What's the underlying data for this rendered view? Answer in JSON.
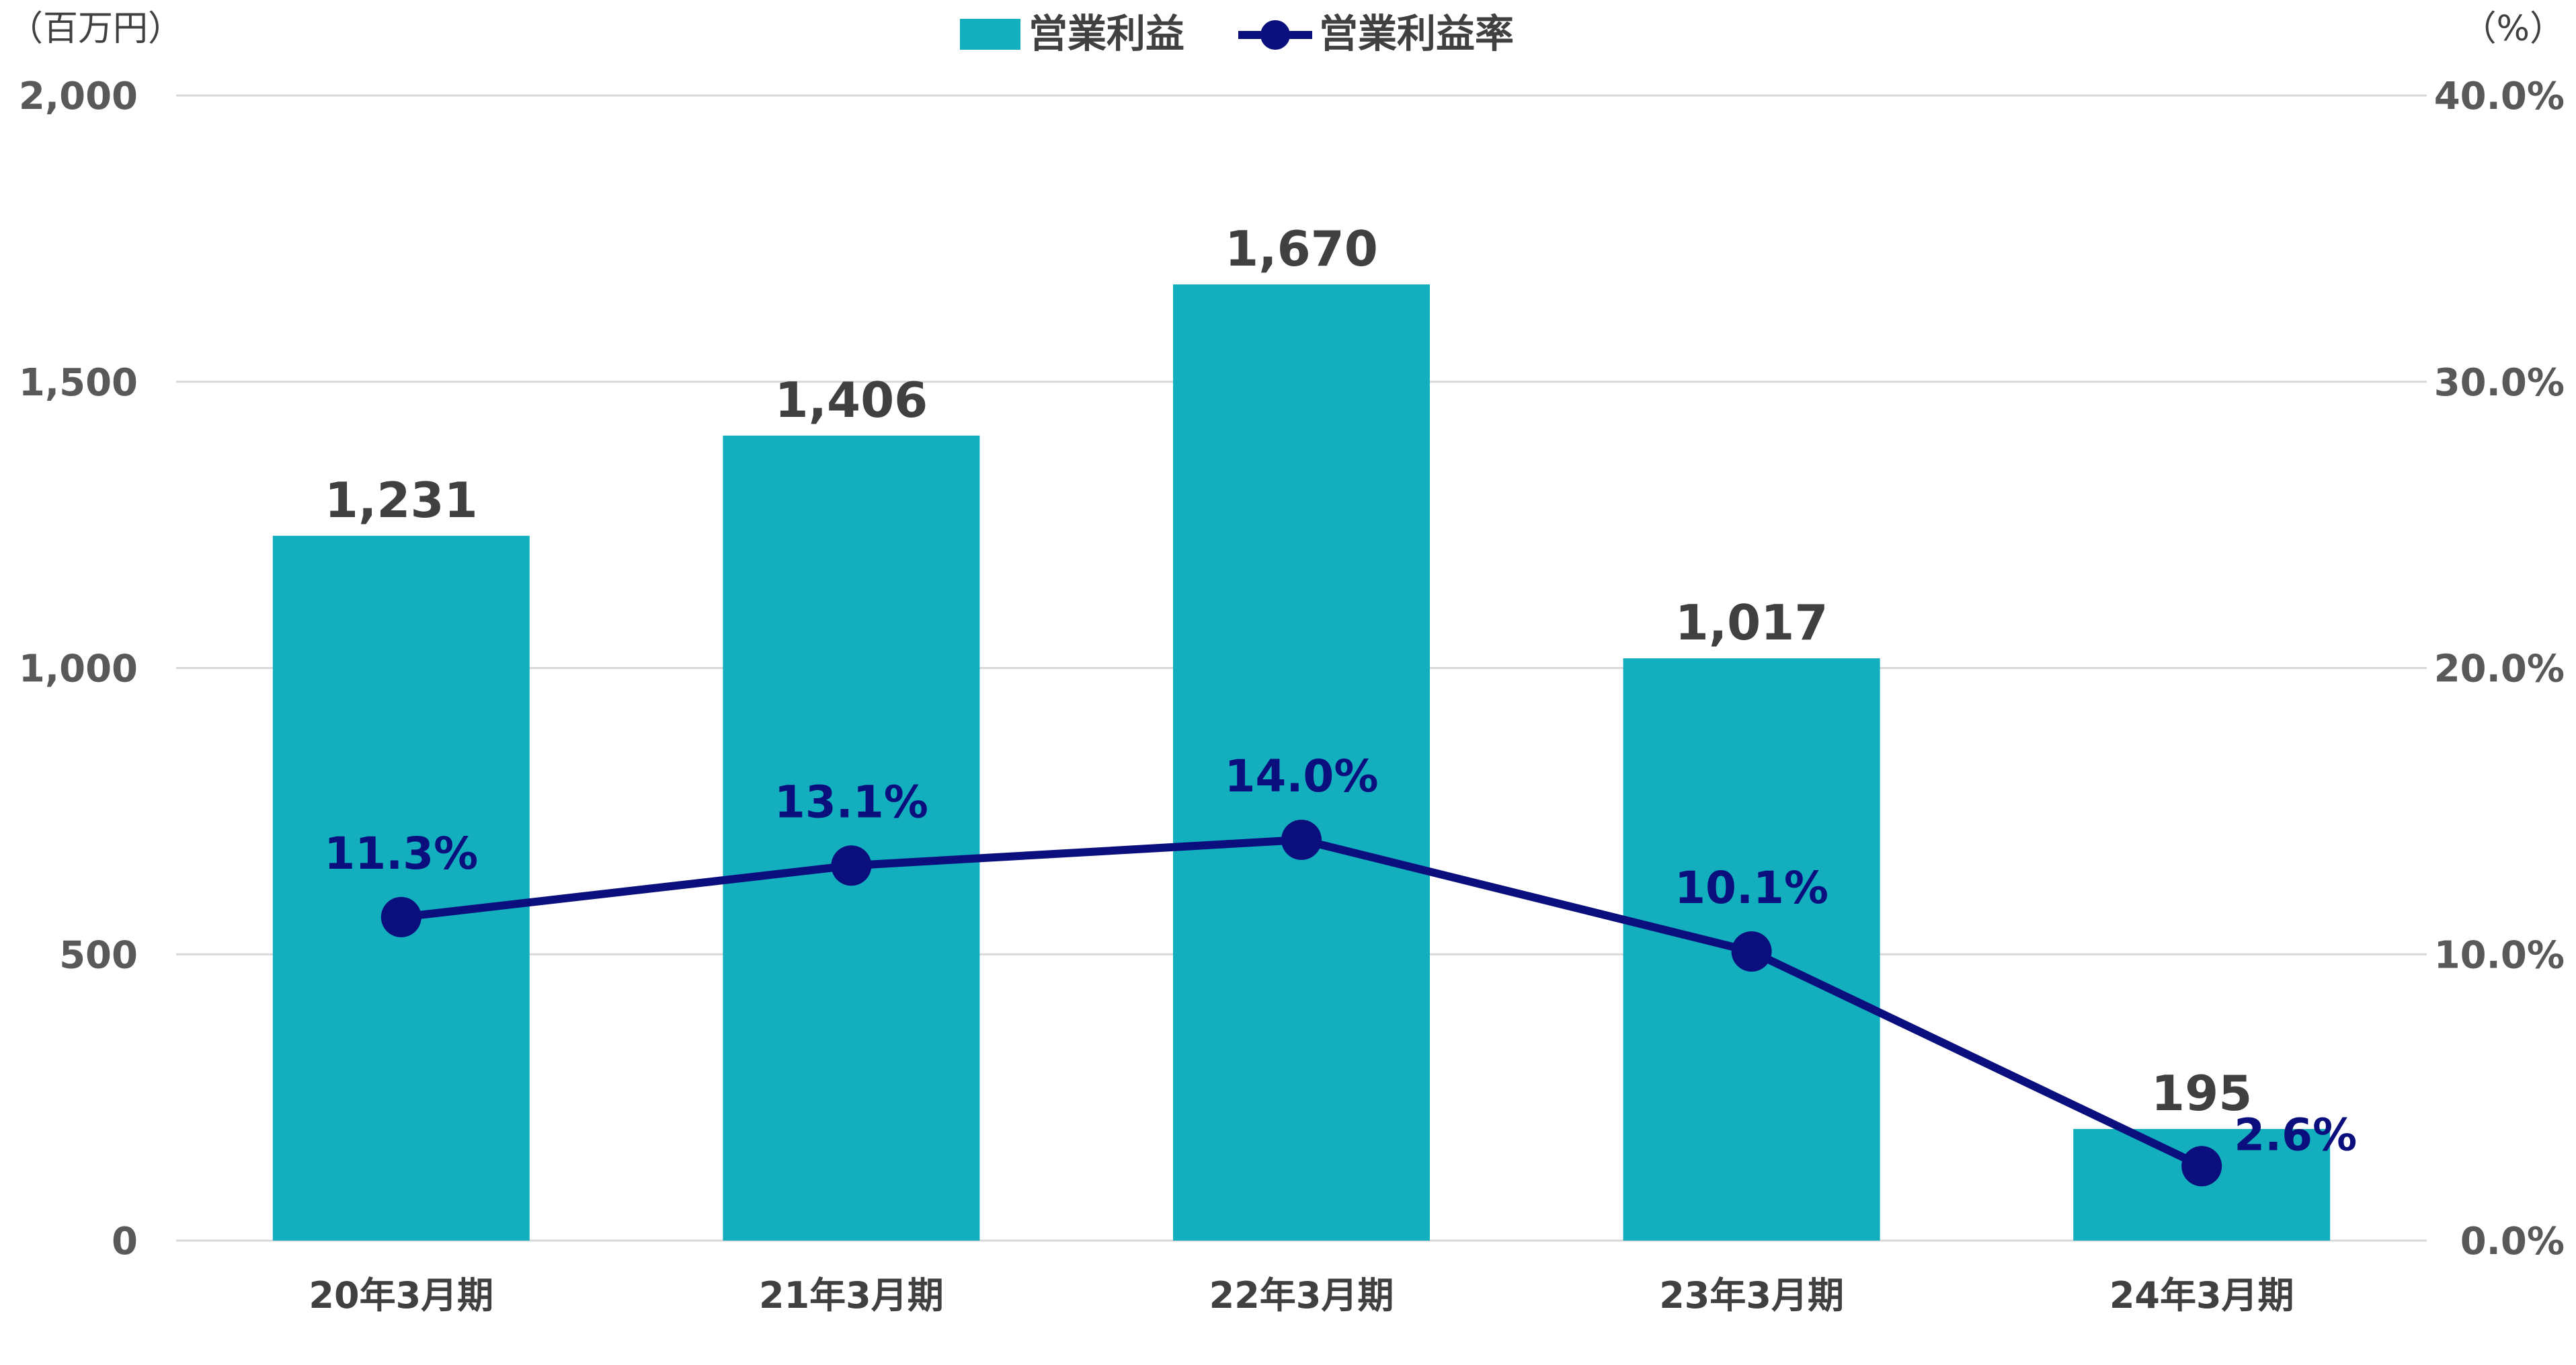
{
  "chart_data": {
    "type": "bar",
    "categories": [
      "20年3月期",
      "21年3月期",
      "22年3月期",
      "23年3月期",
      "24年3月期"
    ],
    "y_unit_left": "（百万円）",
    "y_unit_right": "（%）",
    "ylim_left": [
      0,
      2000
    ],
    "ylim_right": [
      0,
      40
    ],
    "yticks_left": [
      "0",
      "500",
      "1,000",
      "1,500",
      "2,000"
    ],
    "yticks_right": [
      "0.0%",
      "10.0%",
      "20.0%",
      "30.0%",
      "40.0%"
    ],
    "grid": true,
    "legend_position": "top",
    "series": [
      {
        "name": "営業利益",
        "type": "bar",
        "axis": "left",
        "color": "#14AFBF",
        "values": [
          1231,
          1406,
          1670,
          1017,
          195
        ],
        "labels": [
          "1,231",
          "1,406",
          "1,670",
          "1,017",
          "195"
        ]
      },
      {
        "name": "営業利益率",
        "type": "line",
        "axis": "right",
        "color": "#0A0F7D",
        "values": [
          11.3,
          13.1,
          14.0,
          10.1,
          2.6
        ],
        "labels": [
          "11.3%",
          "13.1%",
          "14.0%",
          "10.1%",
          "2.6%"
        ]
      }
    ]
  }
}
